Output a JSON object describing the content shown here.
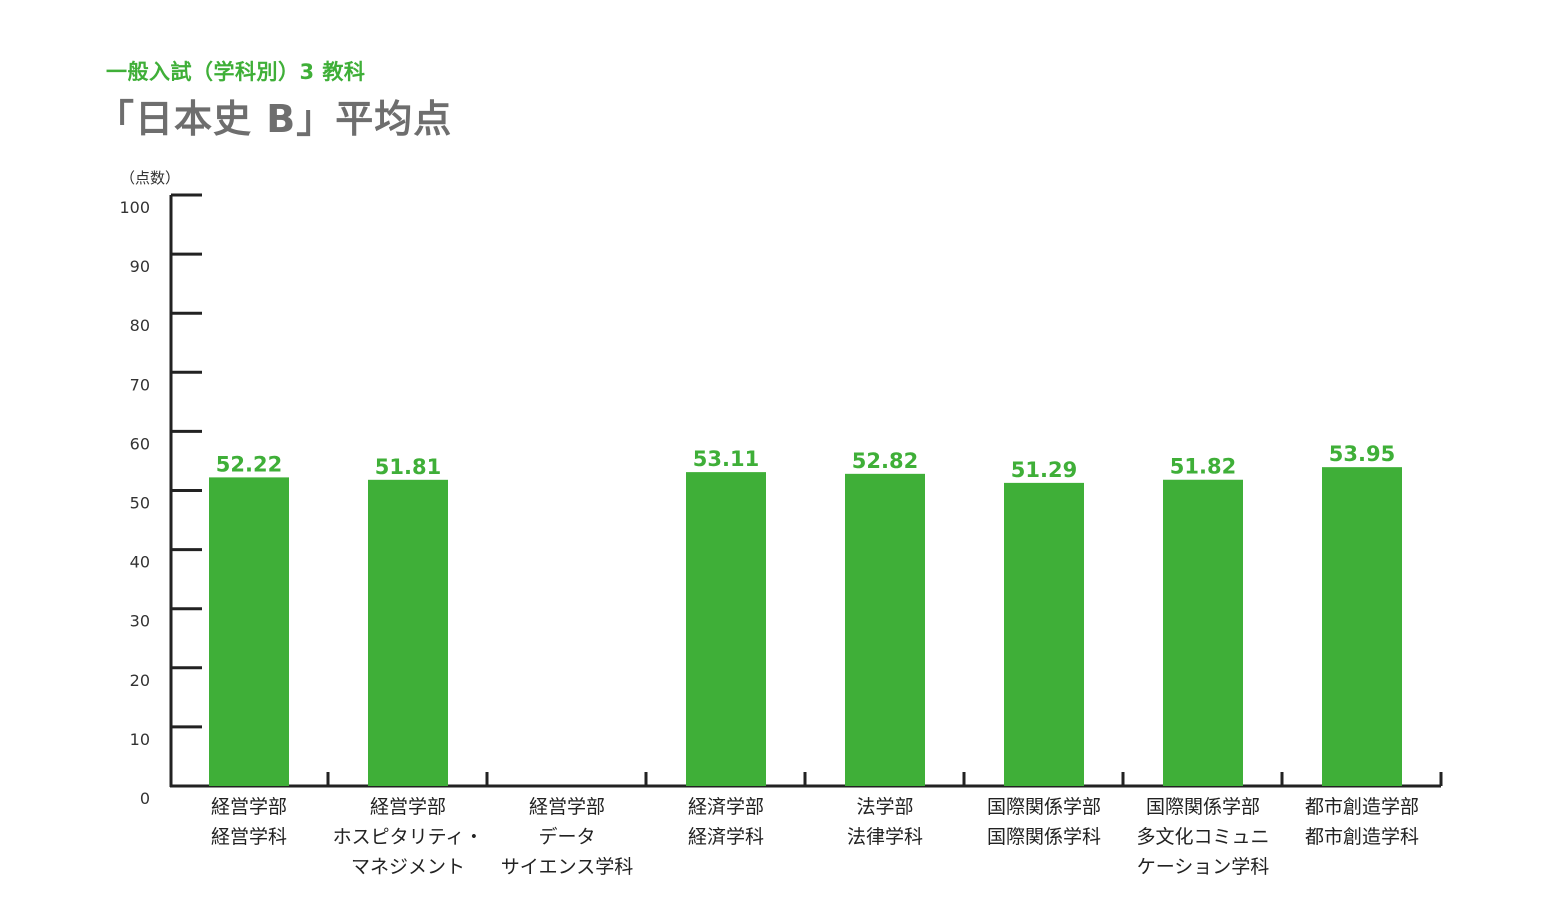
{
  "header": {
    "subtitle": "一般入試（学科別）3 教科",
    "title": "「日本史 B」平均点"
  },
  "colors": {
    "bar": "#3faf38",
    "value_text": "#3faf38",
    "axis": "#222222",
    "title": "#6e6e6e"
  },
  "chart_data": {
    "type": "bar",
    "title": "「日本史 B」平均点",
    "ylabel": "（点数）",
    "xlabel": "",
    "ylim": [
      0,
      100
    ],
    "yticks": [
      0,
      10,
      20,
      30,
      40,
      50,
      60,
      70,
      80,
      90,
      100
    ],
    "grid": false,
    "categories": [
      [
        "経営学部",
        "経営学科"
      ],
      [
        "経営学部",
        "ホスピタリティ・",
        "マネジメント"
      ],
      [
        "経営学部",
        "データ",
        "サイエンス学科"
      ],
      [
        "経済学部",
        "経済学科"
      ],
      [
        "法学部",
        "法律学科"
      ],
      [
        "国際関係学部",
        "国際関係学科"
      ],
      [
        "国際関係学部",
        "多文化コミュニ",
        "ケーション学科"
      ],
      [
        "都市創造学部",
        "都市創造学科"
      ]
    ],
    "values": [
      52.22,
      51.81,
      null,
      53.11,
      52.82,
      51.29,
      51.82,
      53.95
    ],
    "value_labels": [
      "52.22",
      "51.81",
      "",
      "53.11",
      "52.82",
      "51.29",
      "51.82",
      "53.95"
    ]
  }
}
